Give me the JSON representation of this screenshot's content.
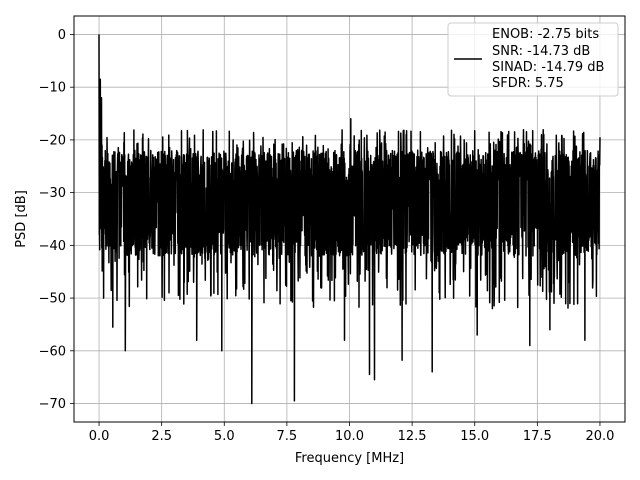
{
  "chart_data": {
    "type": "line",
    "xlabel": "Frequency [MHz]",
    "ylabel": "PSD [dB]",
    "xlim": [
      -1.0,
      21.0
    ],
    "ylim": [
      -73.5,
      3.5
    ],
    "x_ticks": [
      0.0,
      2.5,
      5.0,
      7.5,
      10.0,
      12.5,
      15.0,
      17.5,
      20.0
    ],
    "x_tick_labels": [
      "0.0",
      "2.5",
      "5.0",
      "7.5",
      "10.0",
      "12.5",
      "15.0",
      "17.5",
      "20.0"
    ],
    "y_ticks": [
      0,
      -10,
      -20,
      -30,
      -40,
      -50,
      -60,
      -70
    ],
    "y_tick_labels": [
      "0",
      "−10",
      "−20",
      "−30",
      "−40",
      "−50",
      "−60",
      "−70"
    ],
    "grid": true,
    "legend_position": "top-right",
    "legend_lines": [
      "ENOB: -2.75 bits",
      "SNR: -14.73 dB",
      "SINAD: -14.79 dB",
      "SFDR: 5.75"
    ],
    "series": [
      {
        "color": "#000000",
        "x_range": [
          0.0,
          20.0
        ],
        "noise_band": {
          "upper_typical": -22,
          "lower_typical": -42,
          "median": -32
        },
        "peaks": [
          {
            "x": 0.0,
            "y": 0.0
          },
          {
            "x": 0.05,
            "y": -8.5
          },
          {
            "x": 0.1,
            "y": -12.0
          },
          {
            "x": 10.05,
            "y": -16.0
          },
          {
            "x": 20.0,
            "y": -19.5
          }
        ],
        "dips": [
          {
            "x": 0.18,
            "y": -50.0
          },
          {
            "x": 0.55,
            "y": -55.5
          },
          {
            "x": 1.05,
            "y": -60.0
          },
          {
            "x": 3.9,
            "y": -58.0
          },
          {
            "x": 4.9,
            "y": -60.0
          },
          {
            "x": 6.1,
            "y": -70.0
          },
          {
            "x": 7.8,
            "y": -69.5
          },
          {
            "x": 9.8,
            "y": -58.0
          },
          {
            "x": 10.8,
            "y": -64.5
          },
          {
            "x": 11.0,
            "y": -65.5
          },
          {
            "x": 12.1,
            "y": -61.8
          },
          {
            "x": 13.3,
            "y": -64.0
          },
          {
            "x": 15.1,
            "y": -57.0
          },
          {
            "x": 17.2,
            "y": -59.0
          },
          {
            "x": 18.0,
            "y": -56.0
          },
          {
            "x": 19.4,
            "y": -58.0
          }
        ]
      }
    ]
  }
}
